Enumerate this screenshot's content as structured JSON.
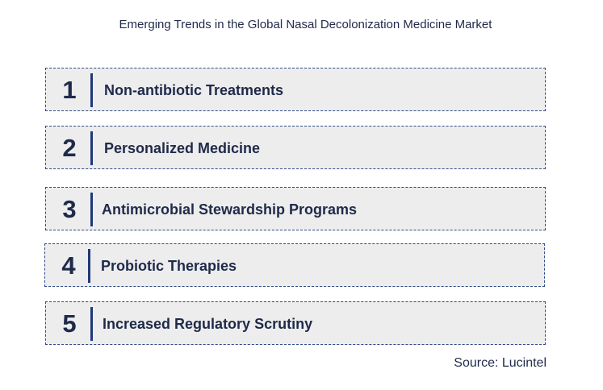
{
  "title": "Emerging Trends in the Global Nasal Decolonization Medicine Market",
  "trends": [
    {
      "number": "1",
      "label": "Non-antibiotic Treatments"
    },
    {
      "number": "2",
      "label": "Personalized Medicine"
    },
    {
      "number": "3",
      "label": "Antimicrobial Stewardship Programs"
    },
    {
      "number": "4",
      "label": "Probiotic Therapies"
    },
    {
      "number": "5",
      "label": "Increased Regulatory Scrutiny"
    }
  ],
  "source": "Source: Lucintel",
  "colors": {
    "box_fill": "#ededed",
    "box_border": "#2f4a86",
    "accent_bar": "#1f3a78",
    "text": "#1f2a4a"
  }
}
